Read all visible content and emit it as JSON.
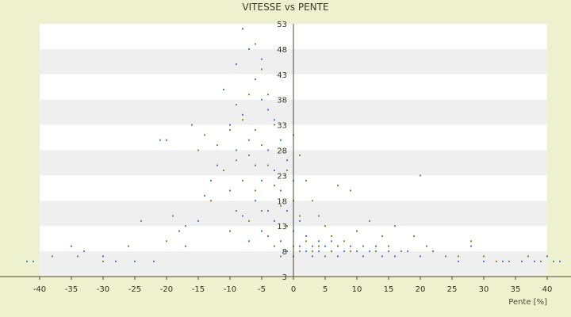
{
  "chart_data": {
    "type": "scatter",
    "title": "VITESSE vs PENTE",
    "xlabel": "Pente [%]",
    "ylabel": "",
    "xlim": [
      -40,
      40
    ],
    "ylim": [
      3,
      53
    ],
    "x_ticks": [
      -40,
      -35,
      -30,
      -25,
      -20,
      -15,
      -10,
      -5,
      0,
      5,
      10,
      15,
      20,
      25,
      30,
      35,
      40
    ],
    "y_ticks": [
      53,
      48,
      43,
      38,
      33,
      28,
      23,
      18,
      13,
      8,
      3
    ],
    "grid": "alternating horizontal bands",
    "legend": "none",
    "colors": {
      "background": "#edf1cd",
      "plot": "#ffffff",
      "band": "#efefef",
      "series_blue": "#2e86de",
      "series_olive": "#8c8a1e",
      "axis": "#4a4a2a"
    },
    "series": [
      {
        "color": "#2e86de",
        "points": [
          [
            -42,
            6
          ],
          [
            -41,
            6
          ],
          [
            -38,
            7
          ],
          [
            -35,
            9
          ],
          [
            -33,
            8
          ],
          [
            -30,
            7
          ],
          [
            -28,
            6
          ],
          [
            -25,
            6
          ],
          [
            -22,
            6
          ],
          [
            -21,
            30
          ],
          [
            -20,
            30
          ],
          [
            -18,
            12
          ],
          [
            -17,
            9
          ],
          [
            -15,
            14
          ],
          [
            -14,
            19
          ],
          [
            -13,
            22
          ],
          [
            -12,
            25
          ],
          [
            -11,
            40
          ],
          [
            -10,
            33
          ],
          [
            -10,
            20
          ],
          [
            -9,
            45
          ],
          [
            -9,
            28
          ],
          [
            -8,
            52
          ],
          [
            -8,
            35
          ],
          [
            -8,
            15
          ],
          [
            -7,
            48
          ],
          [
            -7,
            30
          ],
          [
            -7,
            10
          ],
          [
            -6,
            42
          ],
          [
            -6,
            25
          ],
          [
            -6,
            18
          ],
          [
            -5,
            46
          ],
          [
            -5,
            38
          ],
          [
            -5,
            22
          ],
          [
            -5,
            12
          ],
          [
            -4,
            36
          ],
          [
            -4,
            28
          ],
          [
            -4,
            16
          ],
          [
            -3,
            34
          ],
          [
            -3,
            24
          ],
          [
            -3,
            14
          ],
          [
            -2,
            30
          ],
          [
            -2,
            20
          ],
          [
            -2,
            10
          ],
          [
            -1,
            26
          ],
          [
            -1,
            16
          ],
          [
            -1,
            8
          ],
          [
            0,
            22
          ],
          [
            0,
            12
          ],
          [
            0,
            7
          ],
          [
            1,
            14
          ],
          [
            1,
            9
          ],
          [
            2,
            11
          ],
          [
            2,
            8
          ],
          [
            3,
            9
          ],
          [
            3,
            7
          ],
          [
            4,
            10
          ],
          [
            4,
            8
          ],
          [
            5,
            9
          ],
          [
            5,
            7
          ],
          [
            6,
            8
          ],
          [
            6,
            10
          ],
          [
            7,
            9
          ],
          [
            7,
            7
          ],
          [
            8,
            8
          ],
          [
            9,
            9
          ],
          [
            10,
            8
          ],
          [
            11,
            7
          ],
          [
            12,
            8
          ],
          [
            13,
            9
          ],
          [
            14,
            7
          ],
          [
            15,
            8
          ],
          [
            16,
            7
          ],
          [
            18,
            8
          ],
          [
            20,
            7
          ],
          [
            22,
            8
          ],
          [
            24,
            7
          ],
          [
            26,
            6
          ],
          [
            28,
            9
          ],
          [
            30,
            6
          ],
          [
            33,
            6
          ],
          [
            36,
            6
          ],
          [
            38,
            6
          ],
          [
            40,
            7
          ],
          [
            41,
            6
          ],
          [
            42,
            6
          ]
        ]
      },
      {
        "color": "#8c8a1e",
        "points": [
          [
            -38,
            7
          ],
          [
            -34,
            7
          ],
          [
            -30,
            6
          ],
          [
            -26,
            9
          ],
          [
            -24,
            14
          ],
          [
            -20,
            10
          ],
          [
            -19,
            15
          ],
          [
            -17,
            13
          ],
          [
            -16,
            33
          ],
          [
            -15,
            28
          ],
          [
            -14,
            31
          ],
          [
            -13,
            18
          ],
          [
            -12,
            29
          ],
          [
            -11,
            24
          ],
          [
            -10,
            32
          ],
          [
            -10,
            12
          ],
          [
            -9,
            37
          ],
          [
            -9,
            26
          ],
          [
            -9,
            16
          ],
          [
            -8,
            34
          ],
          [
            -8,
            22
          ],
          [
            -7,
            39
          ],
          [
            -7,
            27
          ],
          [
            -7,
            14
          ],
          [
            -6,
            49
          ],
          [
            -6,
            32
          ],
          [
            -6,
            20
          ],
          [
            -5,
            44
          ],
          [
            -5,
            29
          ],
          [
            -5,
            16
          ],
          [
            -4,
            39
          ],
          [
            -4,
            25
          ],
          [
            -4,
            11
          ],
          [
            -3,
            33
          ],
          [
            -3,
            21
          ],
          [
            -3,
            9
          ],
          [
            -2,
            28
          ],
          [
            -2,
            17
          ],
          [
            -2,
            7
          ],
          [
            -1,
            24
          ],
          [
            -1,
            13
          ],
          [
            0,
            31
          ],
          [
            0,
            18
          ],
          [
            0,
            9
          ],
          [
            1,
            27
          ],
          [
            1,
            15
          ],
          [
            1,
            8
          ],
          [
            2,
            22
          ],
          [
            2,
            10
          ],
          [
            3,
            18
          ],
          [
            3,
            8
          ],
          [
            4,
            15
          ],
          [
            4,
            9
          ],
          [
            5,
            13
          ],
          [
            5,
            7
          ],
          [
            6,
            11
          ],
          [
            6,
            8
          ],
          [
            7,
            21
          ],
          [
            7,
            9
          ],
          [
            8,
            10
          ],
          [
            9,
            20
          ],
          [
            9,
            8
          ],
          [
            10,
            12
          ],
          [
            11,
            9
          ],
          [
            12,
            14
          ],
          [
            13,
            8
          ],
          [
            14,
            11
          ],
          [
            15,
            9
          ],
          [
            16,
            13
          ],
          [
            17,
            8
          ],
          [
            19,
            11
          ],
          [
            20,
            23
          ],
          [
            21,
            9
          ],
          [
            22,
            8
          ],
          [
            24,
            7
          ],
          [
            26,
            7
          ],
          [
            28,
            10
          ],
          [
            30,
            7
          ],
          [
            32,
            6
          ],
          [
            34,
            6
          ],
          [
            37,
            7
          ],
          [
            39,
            6
          ]
        ]
      }
    ]
  }
}
